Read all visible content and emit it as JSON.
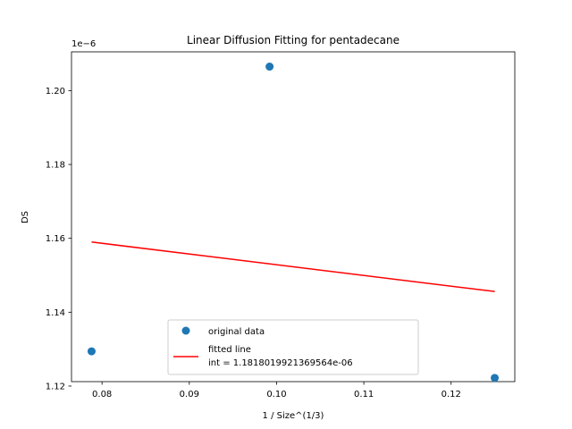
{
  "chart_data": {
    "type": "scatter",
    "title": "Linear Diffusion Fitting for pentadecane",
    "xlabel": "1 / Size^(1/3)",
    "ylabel": "DS",
    "y_offset_text": "1e−6",
    "xlim": [
      0.0765,
      0.1273
    ],
    "ylim": [
      1.1212,
      1.2105
    ],
    "x_ticks": [
      0.08,
      0.09,
      0.1,
      0.11,
      0.12
    ],
    "x_tick_labels": [
      "0.08",
      "0.09",
      "0.10",
      "0.11",
      "0.12"
    ],
    "y_ticks": [
      1.12,
      1.14,
      1.16,
      1.18,
      1.2
    ],
    "y_tick_labels": [
      "1.12",
      "1.14",
      "1.16",
      "1.18",
      "1.20"
    ],
    "grid": false,
    "legend_position": "lower-center",
    "series": [
      {
        "name": "original data",
        "kind": "points",
        "color": "#1f77b4",
        "points": [
          {
            "x": 0.0788,
            "y": 1.1294
          },
          {
            "x": 0.0992,
            "y": 1.2065
          },
          {
            "x": 0.125,
            "y": 1.1222
          }
        ]
      },
      {
        "name": "fitted line\n int = 1.1818019921369564e-06",
        "kind": "line",
        "color": "#ff0000",
        "points": [
          {
            "x": 0.0788,
            "y": 1.159
          },
          {
            "x": 0.125,
            "y": 1.1456
          }
        ]
      }
    ]
  }
}
